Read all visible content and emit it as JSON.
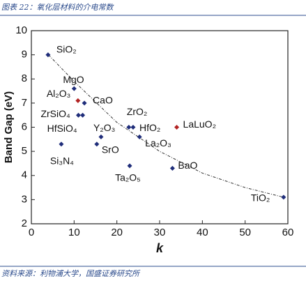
{
  "header": "图表 22：氧化层材料的介电常数",
  "source": "资料来源：利物浦大学，国盛证券研究所",
  "chart_data": {
    "type": "scatter",
    "xlabel": "k",
    "ylabel": "Band Gap (eV)",
    "xlim": [
      0,
      60
    ],
    "xticks": [
      0,
      10,
      20,
      30,
      40,
      50,
      60
    ],
    "ylim": [
      2,
      10
    ],
    "yticks": [
      2,
      3,
      4,
      5,
      6,
      7,
      8,
      9,
      10
    ],
    "series": [
      {
        "labels": [
          "SiO₂",
          "MgO",
          "Al₂O₃",
          "CaO",
          "ZrSiO₄",
          "HfSiO₄",
          "Si₃N₄",
          "Y₂O₃",
          "SrO",
          "ZrO₂",
          "HfO₂",
          "La₂O₃",
          "Ta₂O₅",
          "BaO",
          "LaLuO₂",
          "TiO₂"
        ],
        "x": [
          3.9,
          10,
          10.9,
          12.4,
          11,
          12,
          7,
          16.3,
          15.3,
          22.8,
          23.8,
          25.3,
          23,
          33,
          34,
          59
        ],
        "values": [
          9.0,
          7.6,
          7.1,
          7.0,
          6.5,
          6.5,
          5.3,
          5.6,
          5.3,
          6.0,
          6.0,
          5.6,
          4.4,
          4.3,
          6.0,
          3.1
        ],
        "colors": [
          "#1f2d7a",
          "#1f2d7a",
          "#b22222",
          "#1f2d7a",
          "#1f2d7a",
          "#1f2d7a",
          "#1f2d7a",
          "#1f2d7a",
          "#1f2d7a",
          "#1f2d7a",
          "#1f2d7a",
          "#1f2d7a",
          "#1f2d7a",
          "#1f2d7a",
          "#b22222",
          "#1f2d7a"
        ]
      }
    ],
    "trend": {
      "x": [
        4,
        10,
        20,
        30,
        40,
        50,
        59
      ],
      "values": [
        9.0,
        7.9,
        6.2,
        5.0,
        4.1,
        3.5,
        3.1
      ]
    }
  }
}
